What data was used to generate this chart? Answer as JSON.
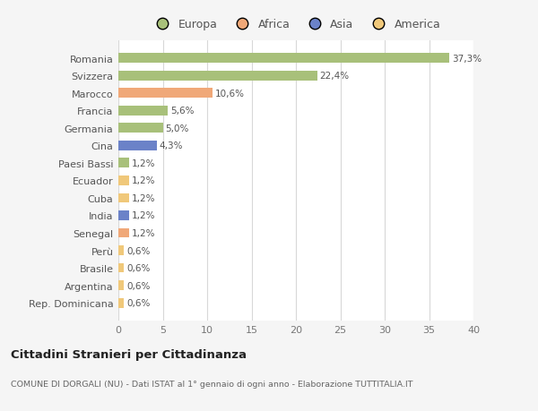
{
  "categories": [
    "Rep. Dominicana",
    "Argentina",
    "Brasile",
    "Perù",
    "Senegal",
    "India",
    "Cuba",
    "Ecuador",
    "Paesi Bassi",
    "Cina",
    "Germania",
    "Francia",
    "Marocco",
    "Svizzera",
    "Romania"
  ],
  "values": [
    0.6,
    0.6,
    0.6,
    0.6,
    1.2,
    1.2,
    1.2,
    1.2,
    1.2,
    4.3,
    5.0,
    5.6,
    10.6,
    22.4,
    37.3
  ],
  "labels": [
    "0,6%",
    "0,6%",
    "0,6%",
    "0,6%",
    "1,2%",
    "1,2%",
    "1,2%",
    "1,2%",
    "1,2%",
    "4,3%",
    "5,0%",
    "5,6%",
    "10,6%",
    "22,4%",
    "37,3%"
  ],
  "colors": [
    "#f0c87a",
    "#f0c87a",
    "#f0c87a",
    "#f0c87a",
    "#f0a878",
    "#6b82c8",
    "#f0c87a",
    "#f0c87a",
    "#a8c07a",
    "#6b82c8",
    "#a8c07a",
    "#a8c07a",
    "#f0a878",
    "#a8c07a",
    "#a8c07a"
  ],
  "legend_labels": [
    "Europa",
    "Africa",
    "Asia",
    "America"
  ],
  "legend_colors": [
    "#a8c07a",
    "#f0a878",
    "#6b82c8",
    "#f0c87a"
  ],
  "title": "Cittadini Stranieri per Cittadinanza",
  "subtitle": "COMUNE DI DORGALI (NU) - Dati ISTAT al 1° gennaio di ogni anno - Elaborazione TUTTITALIA.IT",
  "xlim": [
    0,
    40
  ],
  "xticks": [
    0,
    5,
    10,
    15,
    20,
    25,
    30,
    35,
    40
  ],
  "bg_color": "#f5f5f5",
  "plot_bg": "#ffffff",
  "grid_color": "#d8d8d8",
  "text_color": "#555555",
  "tick_label_color": "#777777"
}
